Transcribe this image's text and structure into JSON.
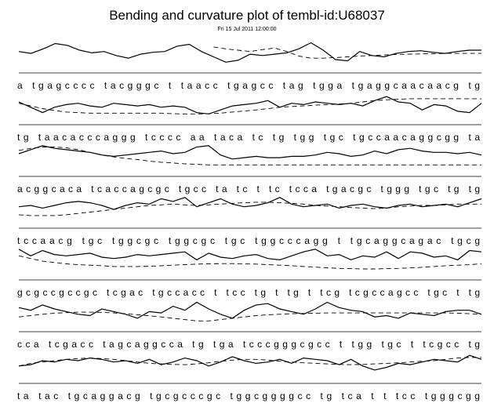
{
  "title": "Bending and curvature plot of tembl-id:U68037",
  "subtitle": "Fri 15 Jul 2011 12:00:00",
  "chart_data": {
    "type": "line",
    "series": [
      {
        "style": "solid"
      },
      {
        "style": "dashed"
      }
    ],
    "rows": [
      {
        "sequence": "a tgagcccc tacgggc t taacc tgagcc tag tgga tgaggcaacaacg tg",
        "bending": [
          0.45,
          0.38,
          0.55,
          0.75,
          0.68,
          0.5,
          0.4,
          0.45,
          0.3,
          0.2,
          0.35,
          0.42,
          0.45,
          0.65,
          0.72,
          0.45,
          0.25,
          0.05,
          0.12,
          0.35,
          0.3,
          0.35,
          0.4,
          0.55,
          0.78,
          0.5,
          0.15,
          0.1,
          0.45,
          0.3,
          0.25,
          0.38,
          0.45,
          0.48,
          0.42,
          0.38,
          0.45,
          0.5,
          0.5
        ],
        "curvature": [
          null,
          null,
          null,
          null,
          null,
          null,
          null,
          null,
          null,
          null,
          null,
          null,
          null,
          null,
          null,
          null,
          0.62,
          0.55,
          0.5,
          0.45,
          0.52,
          0.58,
          0.45,
          0.28,
          0.2,
          0.2,
          0.22,
          0.25,
          0.28,
          0.3,
          0.32,
          0.34,
          0.35,
          0.36,
          0.37,
          0.38,
          0.38,
          0.38,
          0.38
        ]
      },
      {
        "sequence": "tg taacacccaggg tcccc aa taca tc tg tgg tgc tgccaacaggcgg ta",
        "bending": [
          0.5,
          0.3,
          0.1,
          0.3,
          0.4,
          0.45,
          0.35,
          0.3,
          0.45,
          0.4,
          0.35,
          0.4,
          0.3,
          0.35,
          0.3,
          0.1,
          0.05,
          0.2,
          0.35,
          0.4,
          0.45,
          0.55,
          0.3,
          0.45,
          0.4,
          0.5,
          0.45,
          0.4,
          0.45,
          0.35,
          0.55,
          0.7,
          0.5,
          0.45,
          0.2,
          0.4,
          0.35,
          0.15,
          0.1,
          0.45
        ],
        "curvature": [
          0.45,
          0.35,
          0.25,
          0.18,
          0.12,
          0.1,
          0.08,
          0.08,
          0.08,
          0.08,
          0.08,
          0.08,
          0.08,
          0.06,
          0.05,
          0.05,
          0.06,
          0.08,
          0.12,
          0.16,
          0.2,
          0.25,
          0.3,
          0.33,
          0.35,
          0.38,
          0.4,
          0.42,
          0.45,
          0.5,
          0.55,
          0.58,
          0.6,
          0.62,
          0.62,
          0.62,
          0.62,
          0.62,
          0.62,
          0.62
        ]
      },
      {
        "sequence": "acggcaca tcaccagcgc tgcc ta tc t tc tcca tgacgc tggg tgc tg tg",
        "bending": [
          0.5,
          0.65,
          0.8,
          0.7,
          0.65,
          0.6,
          0.55,
          0.45,
          0.4,
          0.45,
          0.5,
          0.55,
          0.6,
          0.5,
          0.55,
          0.75,
          0.8,
          0.45,
          0.3,
          0.35,
          0.4,
          0.35,
          0.35,
          0.4,
          0.4,
          0.45,
          0.55,
          0.5,
          0.4,
          0.45,
          0.6,
          0.5,
          0.65,
          0.7,
          0.6,
          0.55,
          0.55,
          0.5,
          0.55,
          0.45
        ],
        "curvature": [
          0.62,
          0.7,
          0.75,
          0.75,
          0.72,
          0.65,
          0.55,
          0.45,
          0.38,
          0.32,
          0.28,
          0.22,
          0.18,
          0.15,
          0.12,
          0.1,
          0.08,
          0.08,
          0.08,
          0.08,
          0.08,
          0.08,
          0.08,
          0.08,
          0.08,
          0.08,
          0.08,
          0.08,
          0.08,
          0.08,
          0.08,
          0.08,
          0.08,
          0.08,
          0.08,
          0.08,
          0.08,
          0.08,
          0.08,
          0.08
        ]
      },
      {
        "sequence": "tccaacg tgc tggcgc tggcgc tgc tggcccagg t tgcaggcagac tgcg",
        "bending": [
          0.45,
          0.5,
          0.4,
          0.5,
          0.6,
          0.65,
          0.6,
          0.5,
          0.35,
          0.5,
          0.6,
          0.55,
          0.75,
          0.65,
          0.8,
          0.45,
          0.6,
          0.75,
          0.55,
          0.45,
          0.5,
          0.6,
          0.8,
          0.55,
          0.45,
          0.5,
          0.55,
          0.4,
          0.5,
          0.55,
          0.45,
          0.4,
          0.5,
          0.55,
          0.45,
          0.5,
          0.55,
          0.45,
          0.6,
          0.75
        ],
        "curvature": [
          0.15,
          0.12,
          0.12,
          0.12,
          0.15,
          0.2,
          0.25,
          0.3,
          0.35,
          0.4,
          0.45,
          0.5,
          0.52,
          0.55,
          0.52,
          0.5,
          0.52,
          0.55,
          0.58,
          0.6,
          0.62,
          0.62,
          0.6,
          0.58,
          0.55,
          0.5,
          0.48,
          0.45,
          0.42,
          0.4,
          0.38,
          0.4,
          0.45,
          0.48,
          0.5,
          0.5,
          0.52,
          0.55,
          0.55,
          0.55
        ]
      },
      {
        "sequence": "gcgccgccgc tcgac tgccacc t tcc tg t tg t tcg tcgccagcc tgc t tg",
        "bending": [
          0.8,
          0.55,
          0.75,
          0.6,
          0.55,
          0.6,
          0.65,
          0.5,
          0.45,
          0.5,
          0.6,
          0.55,
          0.6,
          0.65,
          0.7,
          0.4,
          0.65,
          0.5,
          0.45,
          0.55,
          0.6,
          0.45,
          0.4,
          0.55,
          0.7,
          0.8,
          0.55,
          0.6,
          0.4,
          0.55,
          0.5,
          0.7,
          0.45,
          0.7,
          0.65,
          0.5,
          0.55,
          0.4,
          0.75,
          0.7
        ],
        "curvature": [
          0.55,
          0.45,
          0.35,
          0.3,
          0.25,
          0.22,
          0.2,
          0.18,
          0.15,
          0.15,
          0.15,
          0.16,
          0.18,
          0.2,
          0.22,
          0.24,
          0.25,
          0.26,
          0.26,
          0.25,
          0.24,
          0.22,
          0.2,
          0.18,
          0.15,
          0.13,
          0.1,
          0.08,
          0.07,
          0.06,
          0.06,
          0.07,
          0.08,
          0.1,
          0.12,
          0.15,
          0.18,
          0.2,
          0.22,
          0.25
        ]
      },
      {
        "sequence": "cca tcgacc tagcaggcca tg tga tcccgggcgcc t tgg tgc t tcgcc tg",
        "bending": [
          0.55,
          0.45,
          0.65,
          0.5,
          0.4,
          0.3,
          0.25,
          0.5,
          0.4,
          0.3,
          0.15,
          0.4,
          0.35,
          0.6,
          0.45,
          0.75,
          0.5,
          0.3,
          0.15,
          0.45,
          0.65,
          0.7,
          0.5,
          0.4,
          0.3,
          0.5,
          0.75,
          0.55,
          0.45,
          0.4,
          0.2,
          0.25,
          0.15,
          0.35,
          0.3,
          0.25,
          0.4,
          0.45,
          0.45,
          0.3
        ],
        "curvature": [
          0.2,
          0.25,
          0.3,
          0.34,
          0.36,
          0.38,
          0.38,
          0.37,
          0.35,
          0.32,
          0.28,
          0.24,
          0.2,
          0.15,
          0.1,
          0.05,
          0.05,
          0.1,
          0.15,
          0.2,
          0.25,
          0.28,
          0.3,
          0.32,
          0.33,
          0.34,
          0.35,
          0.35,
          0.35,
          0.35,
          0.35,
          0.35,
          0.35,
          0.35,
          0.35,
          0.35,
          0.35,
          0.34,
          0.32,
          0.3
        ]
      },
      {
        "sequence": "ta tac tgcaggacg tgcgcccgc tggcggggcc tg tca t t tcc tgggcgg",
        "bending": [
          0.3,
          0.35,
          0.5,
          0.45,
          0.55,
          0.5,
          0.6,
          0.55,
          0.45,
          0.5,
          0.4,
          0.55,
          0.35,
          0.45,
          0.6,
          0.5,
          0.3,
          0.45,
          0.65,
          0.5,
          0.4,
          0.45,
          0.55,
          0.4,
          0.6,
          0.55,
          0.5,
          0.35,
          0.55,
          0.3,
          0.15,
          0.25,
          0.4,
          0.35,
          0.45,
          0.55,
          0.5,
          0.45,
          0.7,
          0.55
        ],
        "curvature": [
          0.3,
          0.4,
          0.45,
          0.5,
          0.55,
          0.58,
          0.6,
          0.58,
          0.55,
          0.5,
          0.45,
          0.4,
          0.38,
          0.36,
          0.35,
          0.38,
          0.42,
          0.48,
          0.52,
          0.55,
          0.55,
          0.52,
          0.48,
          0.45,
          0.42,
          0.4,
          0.38,
          0.36,
          0.35,
          0.36,
          0.38,
          0.4,
          0.42,
          0.45,
          0.48,
          0.5,
          0.55,
          0.6,
          0.62,
          0.62
        ]
      }
    ]
  }
}
